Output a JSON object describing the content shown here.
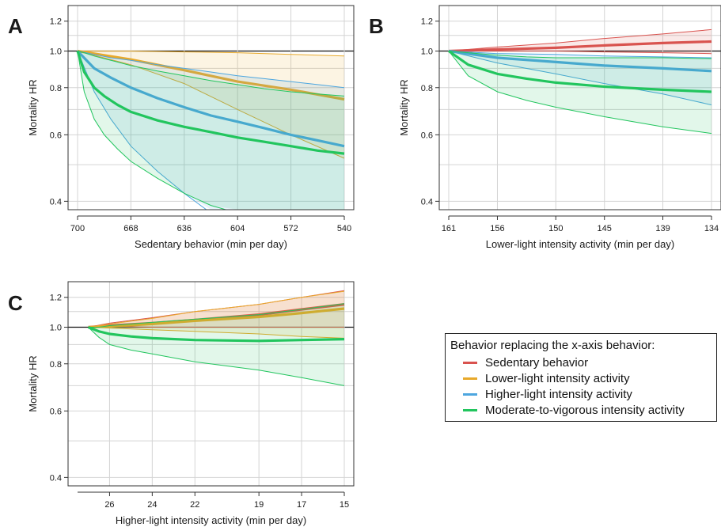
{
  "figure": {
    "legend": {
      "title": "Behavior replacing the x-axis behavior:",
      "items": [
        {
          "label": "Sedentary behavior",
          "color": "#d9534f"
        },
        {
          "label": "Lower-light intensity activity",
          "color": "#e8a92a"
        },
        {
          "label": "Higher-light intensity activity",
          "color": "#4da6df"
        },
        {
          "label": "Moderate-to-vigorous intensity activity",
          "color": "#22c55e"
        }
      ]
    }
  },
  "chart_data": [
    {
      "type": "line",
      "panel": "A",
      "xlabel": "Sedentary behavior (min per day)",
      "ylabel": "Mortality HR",
      "y_scale": "log",
      "ylim": [
        0.38,
        1.32
      ],
      "yticks": [
        "0.4",
        "0.6",
        "0.8",
        "1.0",
        "1.2"
      ],
      "x_reversed": true,
      "xlim": [
        700,
        540
      ],
      "xticks": [
        "700",
        "668",
        "636",
        "604",
        "572",
        "540"
      ],
      "series": [
        {
          "name": "Lower-light intensity activity",
          "color": "#e8a92a",
          "x": [
            700,
            668,
            636,
            604,
            572,
            540
          ],
          "est": [
            1.0,
            0.95,
            0.89,
            0.83,
            0.79,
            0.745
          ],
          "lower": [
            1.0,
            0.92,
            0.82,
            0.7,
            0.6,
            0.52
          ],
          "upper": [
            1.0,
            1.0,
            0.995,
            0.99,
            0.98,
            0.97
          ]
        },
        {
          "name": "Higher-light intensity activity",
          "color": "#4da6df",
          "x": [
            700,
            690,
            680,
            668,
            652,
            636,
            620,
            604,
            588,
            572,
            556,
            540
          ],
          "est": [
            1.0,
            0.9,
            0.85,
            0.8,
            0.75,
            0.71,
            0.675,
            0.65,
            0.625,
            0.6,
            0.58,
            0.56
          ],
          "lower": [
            1.0,
            0.78,
            0.66,
            0.56,
            0.48,
            0.42,
            0.37,
            0.33,
            0.3,
            0.28,
            0.26,
            0.24
          ],
          "upper": [
            1.0,
            0.98,
            0.96,
            0.945,
            0.92,
            0.9,
            0.88,
            0.86,
            0.845,
            0.83,
            0.815,
            0.8
          ]
        },
        {
          "name": "Moderate-to-vigorous intensity activity",
          "color": "#22c55e",
          "x": [
            700,
            696,
            690,
            684,
            676,
            668,
            652,
            636,
            620,
            604,
            588,
            572,
            556,
            540
          ],
          "est": [
            1.0,
            0.88,
            0.8,
            0.76,
            0.72,
            0.69,
            0.655,
            0.63,
            0.61,
            0.59,
            0.575,
            0.56,
            0.545,
            0.535
          ],
          "lower": [
            1.0,
            0.78,
            0.66,
            0.6,
            0.55,
            0.51,
            0.46,
            0.42,
            0.39,
            0.37,
            0.35,
            0.33,
            0.31,
            0.3
          ],
          "upper": [
            1.0,
            0.99,
            0.97,
            0.955,
            0.935,
            0.915,
            0.885,
            0.86,
            0.835,
            0.815,
            0.795,
            0.78,
            0.77,
            0.76
          ]
        }
      ]
    },
    {
      "type": "line",
      "panel": "B",
      "xlabel": "Lower-light intensity activity (min per day)",
      "ylabel": "Mortality HR",
      "y_scale": "log",
      "ylim": [
        0.38,
        1.32
      ],
      "yticks": [
        "0.4",
        "0.6",
        "0.8",
        "1.0",
        "1.2"
      ],
      "x_reversed": true,
      "xlim": [
        161,
        134
      ],
      "xticks": [
        "161",
        "156",
        "150",
        "145",
        "139",
        "134"
      ],
      "series": [
        {
          "name": "Sedentary behavior",
          "color": "#d9534f",
          "x": [
            161,
            156,
            150,
            145,
            139,
            134
          ],
          "est": [
            1.0,
            1.01,
            1.02,
            1.035,
            1.05,
            1.06
          ],
          "lower": [
            1.0,
            1.0,
            1.0,
            0.995,
            0.99,
            0.985
          ],
          "upper": [
            1.0,
            1.025,
            1.05,
            1.08,
            1.11,
            1.14
          ]
        },
        {
          "name": "Higher-light intensity activity",
          "color": "#4da6df",
          "x": [
            161,
            156,
            150,
            145,
            139,
            134
          ],
          "est": [
            1.0,
            0.96,
            0.935,
            0.915,
            0.9,
            0.885
          ],
          "lower": [
            1.0,
            0.93,
            0.87,
            0.82,
            0.77,
            0.72
          ],
          "upper": [
            1.0,
            0.985,
            0.98,
            0.97,
            0.965,
            0.96
          ]
        },
        {
          "name": "Moderate-to-vigorous intensity activity",
          "color": "#22c55e",
          "x": [
            161,
            159,
            156,
            153,
            150,
            145,
            139,
            134
          ],
          "est": [
            1.0,
            0.92,
            0.87,
            0.845,
            0.825,
            0.805,
            0.79,
            0.78
          ],
          "lower": [
            1.0,
            0.86,
            0.78,
            0.74,
            0.71,
            0.67,
            0.63,
            0.605
          ],
          "upper": [
            1.0,
            0.99,
            0.975,
            0.965,
            0.96,
            0.96,
            0.96,
            0.955
          ]
        }
      ]
    },
    {
      "type": "line",
      "panel": "C",
      "xlabel": "Higher-light intensity activity (min per day)",
      "ylabel": "Mortality HR",
      "y_scale": "log",
      "ylim": [
        0.38,
        1.32
      ],
      "yticks": [
        "0.4",
        "0.6",
        "0.8",
        "1.0",
        "1.2"
      ],
      "x_reversed": true,
      "xlim": [
        27.5,
        15
      ],
      "xticks": [
        "26",
        "24",
        "22",
        "19",
        "17",
        "15"
      ],
      "tick_positions": [
        26,
        24,
        22,
        19,
        17,
        15
      ],
      "series": [
        {
          "name": "Sedentary behavior",
          "color": "#d9534f",
          "x": [
            27,
            26,
            24,
            22,
            19,
            17,
            15
          ],
          "est": [
            1.0,
            1.01,
            1.025,
            1.045,
            1.08,
            1.115,
            1.15
          ],
          "lower": [
            1.0,
            1.005,
            1.0,
            1.0,
            1.0,
            1.0,
            1.0
          ],
          "upper": [
            1.0,
            1.025,
            1.06,
            1.1,
            1.15,
            1.2,
            1.25
          ]
        },
        {
          "name": "Lower-light intensity activity",
          "color": "#e8a92a",
          "x": [
            27,
            26,
            24,
            22,
            19,
            17,
            15
          ],
          "est": [
            1.0,
            1.005,
            1.02,
            1.04,
            1.065,
            1.09,
            1.12
          ],
          "lower": [
            1.0,
            0.995,
            0.985,
            0.975,
            0.96,
            0.945,
            0.935
          ],
          "upper": [
            1.0,
            1.02,
            1.055,
            1.1,
            1.15,
            1.2,
            1.245
          ]
        },
        {
          "name": "Moderate-to-vigorous intensity activity",
          "color": "#22c55e",
          "x": [
            27,
            26.5,
            26,
            25,
            24,
            22,
            19,
            17,
            15
          ],
          "est": [
            1.0,
            0.975,
            0.96,
            0.945,
            0.935,
            0.925,
            0.92,
            0.925,
            0.93
          ],
          "lower": [
            1.0,
            0.94,
            0.9,
            0.87,
            0.85,
            0.81,
            0.77,
            0.735,
            0.7
          ],
          "upper": [
            1.0,
            1.0,
            1.01,
            1.02,
            1.03,
            1.05,
            1.08,
            1.115,
            1.155
          ]
        }
      ]
    }
  ]
}
